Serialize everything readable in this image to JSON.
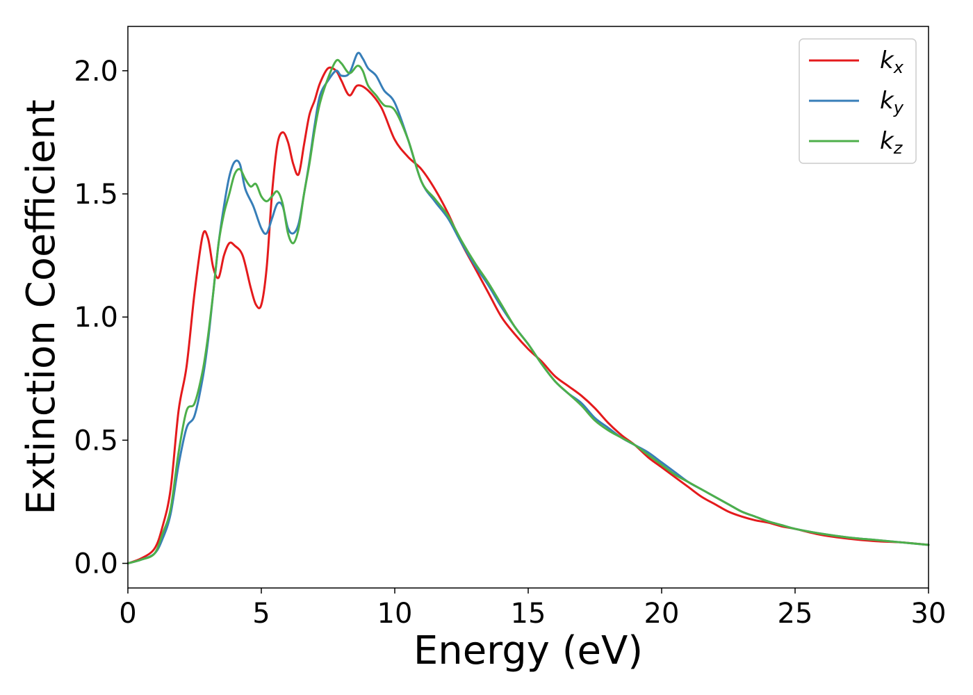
{
  "chart_data": {
    "type": "line",
    "xlabel": "Energy (eV)",
    "ylabel": "Extinction Coefficient",
    "xlim": [
      0,
      30
    ],
    "ylim": [
      -0.1,
      2.18
    ],
    "xticks": [
      0,
      5,
      10,
      15,
      20,
      25,
      30
    ],
    "xtick_labels": [
      "0",
      "5",
      "10",
      "15",
      "20",
      "25",
      "30"
    ],
    "yticks": [
      0.0,
      0.5,
      1.0,
      1.5,
      2.0
    ],
    "ytick_labels": [
      "0.0",
      "0.5",
      "1.0",
      "1.5",
      "2.0"
    ],
    "grid": false,
    "legend": "top-right",
    "series": [
      {
        "name": "k_x",
        "label_main": "k",
        "label_sub": "x",
        "color": "#e41a1c",
        "x": [
          0,
          0.5,
          1.0,
          1.3,
          1.6,
          1.9,
          2.2,
          2.5,
          2.8,
          3.0,
          3.2,
          3.4,
          3.6,
          3.8,
          4.0,
          4.3,
          4.6,
          4.8,
          5.0,
          5.2,
          5.4,
          5.6,
          5.8,
          6.0,
          6.2,
          6.4,
          6.6,
          6.8,
          7.0,
          7.2,
          7.5,
          7.8,
          8.0,
          8.3,
          8.6,
          9.0,
          9.5,
          10.0,
          10.5,
          11.0,
          11.5,
          12.0,
          12.5,
          13.0,
          13.5,
          14.0,
          14.5,
          15.0,
          15.5,
          16.0,
          16.5,
          17.0,
          17.5,
          18.0,
          18.5,
          19.0,
          19.5,
          20.0,
          20.5,
          21.0,
          21.5,
          22.0,
          22.5,
          23.0,
          23.5,
          24.0,
          24.5,
          25.0,
          26.0,
          27.0,
          28.0,
          29.0,
          30.0
        ],
        "y": [
          0.0,
          0.02,
          0.06,
          0.15,
          0.3,
          0.62,
          0.8,
          1.1,
          1.33,
          1.32,
          1.2,
          1.16,
          1.25,
          1.3,
          1.29,
          1.25,
          1.12,
          1.05,
          1.05,
          1.2,
          1.5,
          1.7,
          1.75,
          1.71,
          1.62,
          1.58,
          1.7,
          1.82,
          1.88,
          1.95,
          2.01,
          2.0,
          1.96,
          1.9,
          1.94,
          1.92,
          1.85,
          1.72,
          1.65,
          1.6,
          1.52,
          1.42,
          1.3,
          1.2,
          1.1,
          1.0,
          0.93,
          0.87,
          0.82,
          0.76,
          0.72,
          0.68,
          0.63,
          0.57,
          0.52,
          0.48,
          0.43,
          0.39,
          0.35,
          0.31,
          0.27,
          0.24,
          0.21,
          0.19,
          0.175,
          0.165,
          0.15,
          0.14,
          0.115,
          0.1,
          0.09,
          0.085,
          0.075
        ]
      },
      {
        "name": "k_y",
        "label_main": "k",
        "label_sub": "y",
        "color": "#377eb8",
        "x": [
          0,
          0.5,
          1.0,
          1.3,
          1.6,
          1.9,
          2.2,
          2.5,
          2.8,
          3.0,
          3.2,
          3.4,
          3.6,
          3.8,
          4.0,
          4.2,
          4.4,
          4.7,
          5.0,
          5.2,
          5.4,
          5.6,
          5.8,
          6.0,
          6.2,
          6.4,
          6.6,
          6.8,
          7.0,
          7.2,
          7.5,
          7.8,
          8.0,
          8.3,
          8.6,
          8.8,
          9.0,
          9.3,
          9.6,
          10.0,
          10.5,
          11.0,
          11.5,
          12.0,
          12.5,
          13.0,
          13.5,
          14.0,
          14.5,
          15.0,
          15.5,
          16.0,
          16.5,
          17.0,
          17.5,
          18.0,
          18.5,
          19.0,
          19.5,
          20.0,
          20.5,
          21.0,
          21.5,
          22.0,
          22.5,
          23.0,
          23.5,
          24.0,
          24.5,
          25.0,
          26.0,
          27.0,
          28.0,
          29.0,
          30.0
        ],
        "y": [
          0.0,
          0.015,
          0.04,
          0.1,
          0.2,
          0.4,
          0.55,
          0.6,
          0.75,
          0.9,
          1.1,
          1.3,
          1.45,
          1.57,
          1.63,
          1.62,
          1.52,
          1.45,
          1.36,
          1.34,
          1.4,
          1.46,
          1.45,
          1.36,
          1.34,
          1.38,
          1.5,
          1.63,
          1.78,
          1.9,
          1.96,
          2.0,
          1.98,
          1.99,
          2.07,
          2.05,
          2.01,
          1.98,
          1.92,
          1.87,
          1.72,
          1.55,
          1.47,
          1.4,
          1.3,
          1.21,
          1.13,
          1.04,
          0.96,
          0.89,
          0.81,
          0.74,
          0.69,
          0.65,
          0.59,
          0.55,
          0.51,
          0.48,
          0.45,
          0.41,
          0.37,
          0.33,
          0.3,
          0.27,
          0.24,
          0.21,
          0.19,
          0.17,
          0.155,
          0.14,
          0.12,
          0.105,
          0.095,
          0.085,
          0.075
        ]
      },
      {
        "name": "k_z",
        "label_main": "k",
        "label_sub": "z",
        "color": "#4daf4a",
        "x": [
          0,
          0.5,
          1.0,
          1.3,
          1.6,
          1.9,
          2.2,
          2.5,
          2.8,
          3.0,
          3.2,
          3.4,
          3.6,
          3.8,
          4.0,
          4.2,
          4.4,
          4.6,
          4.8,
          5.0,
          5.2,
          5.4,
          5.6,
          5.8,
          6.0,
          6.2,
          6.4,
          6.6,
          6.8,
          7.0,
          7.2,
          7.5,
          7.8,
          8.0,
          8.3,
          8.6,
          8.8,
          9.0,
          9.3,
          9.6,
          10.0,
          10.5,
          11.0,
          11.5,
          12.0,
          12.5,
          13.0,
          13.5,
          14.0,
          14.5,
          15.0,
          15.5,
          16.0,
          16.5,
          17.0,
          17.5,
          18.0,
          18.5,
          19.0,
          19.5,
          20.0,
          20.5,
          21.0,
          21.5,
          22.0,
          22.5,
          23.0,
          23.5,
          24.0,
          24.5,
          25.0,
          26.0,
          27.0,
          28.0,
          29.0,
          30.0
        ],
        "y": [
          0.0,
          0.015,
          0.04,
          0.12,
          0.22,
          0.45,
          0.62,
          0.65,
          0.78,
          0.92,
          1.1,
          1.3,
          1.42,
          1.5,
          1.58,
          1.6,
          1.56,
          1.53,
          1.54,
          1.49,
          1.47,
          1.49,
          1.51,
          1.46,
          1.34,
          1.3,
          1.36,
          1.5,
          1.62,
          1.76,
          1.87,
          1.97,
          2.04,
          2.03,
          1.99,
          2.02,
          2.0,
          1.94,
          1.9,
          1.86,
          1.84,
          1.72,
          1.55,
          1.48,
          1.41,
          1.31,
          1.22,
          1.14,
          1.05,
          0.96,
          0.89,
          0.81,
          0.74,
          0.69,
          0.64,
          0.58,
          0.54,
          0.51,
          0.48,
          0.44,
          0.4,
          0.36,
          0.33,
          0.3,
          0.27,
          0.24,
          0.21,
          0.19,
          0.17,
          0.155,
          0.14,
          0.12,
          0.105,
          0.095,
          0.085,
          0.075
        ]
      }
    ]
  }
}
